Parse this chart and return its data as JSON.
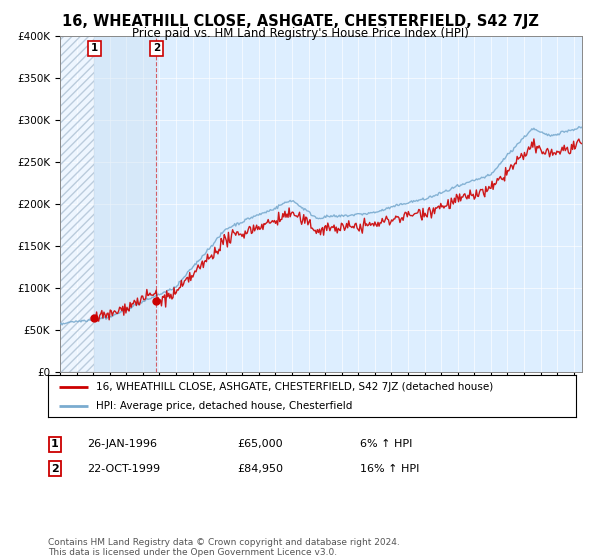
{
  "title": "16, WHEATHILL CLOSE, ASHGATE, CHESTERFIELD, S42 7JZ",
  "subtitle": "Price paid vs. HM Land Registry's House Price Index (HPI)",
  "ylim": [
    0,
    400000
  ],
  "xlim_start": 1994.0,
  "xlim_end": 2025.5,
  "legend_line1": "16, WHEATHILL CLOSE, ASHGATE, CHESTERFIELD, S42 7JZ (detached house)",
  "legend_line2": "HPI: Average price, detached house, Chesterfield",
  "sale1_date": "26-JAN-1996",
  "sale1_price": "£65,000",
  "sale1_hpi": "6% ↑ HPI",
  "sale2_date": "22-OCT-1999",
  "sale2_price": "£84,950",
  "sale2_hpi": "16% ↑ HPI",
  "footer": "Contains HM Land Registry data © Crown copyright and database right 2024.\nThis data is licensed under the Open Government Licence v3.0.",
  "red_color": "#cc0000",
  "blue_color": "#7aabcf",
  "bg_color": "#ddeeff",
  "sale1_year": 1996.07,
  "sale2_year": 1999.81,
  "sale1_price_val": 65000,
  "sale2_price_val": 84950,
  "hpi_seed": 42
}
